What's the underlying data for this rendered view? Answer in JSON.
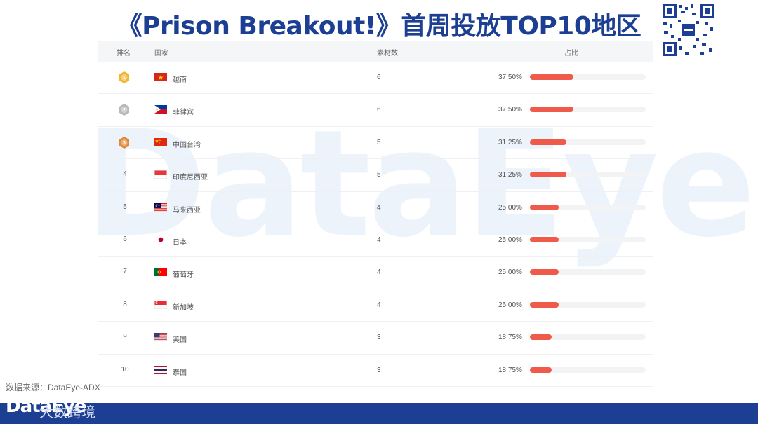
{
  "title": "《Prison Breakout!》首周投放TOP10地区",
  "watermark": "DataEye",
  "headers": {
    "rank": "排名",
    "country": "国家",
    "count": "素材数",
    "share": "占比"
  },
  "source": "数据来源：DataEye-ADX",
  "footer": {
    "logo": "DataEye",
    "text": "大数跨境"
  },
  "colors": {
    "title": "#1c3f94",
    "bar": "#f05a4a",
    "bar_track": "#f2f3f5",
    "footer": "#1c3f94",
    "gold": "#f2b530",
    "silver": "#b9b9b9",
    "bronze": "#e1893a"
  },
  "rows": [
    {
      "rank": "1",
      "medal": "gold",
      "flag": "vietnam-flag",
      "country": "越南",
      "count": "6",
      "pct": "37.50%"
    },
    {
      "rank": "2",
      "medal": "silver",
      "flag": "philippines-flag",
      "country": "菲律宾",
      "count": "6",
      "pct": "37.50%"
    },
    {
      "rank": "3",
      "medal": "bronze",
      "flag": "china-flag",
      "country": "中国台湾",
      "count": "5",
      "pct": "31.25%"
    },
    {
      "rank": "4",
      "medal": "",
      "flag": "indonesia-flag",
      "country": "印度尼西亚",
      "count": "5",
      "pct": "31.25%"
    },
    {
      "rank": "5",
      "medal": "",
      "flag": "malaysia-flag",
      "country": "马来西亚",
      "count": "4",
      "pct": "25.00%"
    },
    {
      "rank": "6",
      "medal": "",
      "flag": "japan-flag",
      "country": "日本",
      "count": "4",
      "pct": "25.00%"
    },
    {
      "rank": "7",
      "medal": "",
      "flag": "portugal-flag",
      "country": "葡萄牙",
      "count": "4",
      "pct": "25.00%"
    },
    {
      "rank": "8",
      "medal": "",
      "flag": "singapore-flag",
      "country": "新加坡",
      "count": "4",
      "pct": "25.00%"
    },
    {
      "rank": "9",
      "medal": "",
      "flag": "usa-flag",
      "country": "美国",
      "count": "3",
      "pct": "18.75%"
    },
    {
      "rank": "10",
      "medal": "",
      "flag": "thailand-flag",
      "country": "泰国",
      "count": "3",
      "pct": "18.75%"
    }
  ],
  "chart_data": {
    "type": "table",
    "title": "《Prison Breakout!》首周投放TOP10地区",
    "columns": [
      "排名",
      "国家",
      "素材数",
      "占比"
    ],
    "categories": [
      "越南",
      "菲律宾",
      "中国台湾",
      "印度尼西亚",
      "马来西亚",
      "日本",
      "葡萄牙",
      "新加坡",
      "美国",
      "泰国"
    ],
    "series": [
      {
        "values": [
          6,
          6,
          5,
          5,
          4,
          4,
          4,
          4,
          3,
          3
        ]
      },
      {
        "values": [
          37.5,
          37.5,
          31.25,
          31.25,
          25.0,
          25.0,
          25.0,
          25.0,
          18.75,
          18.75
        ]
      }
    ],
    "bar_scale_max": 100
  }
}
